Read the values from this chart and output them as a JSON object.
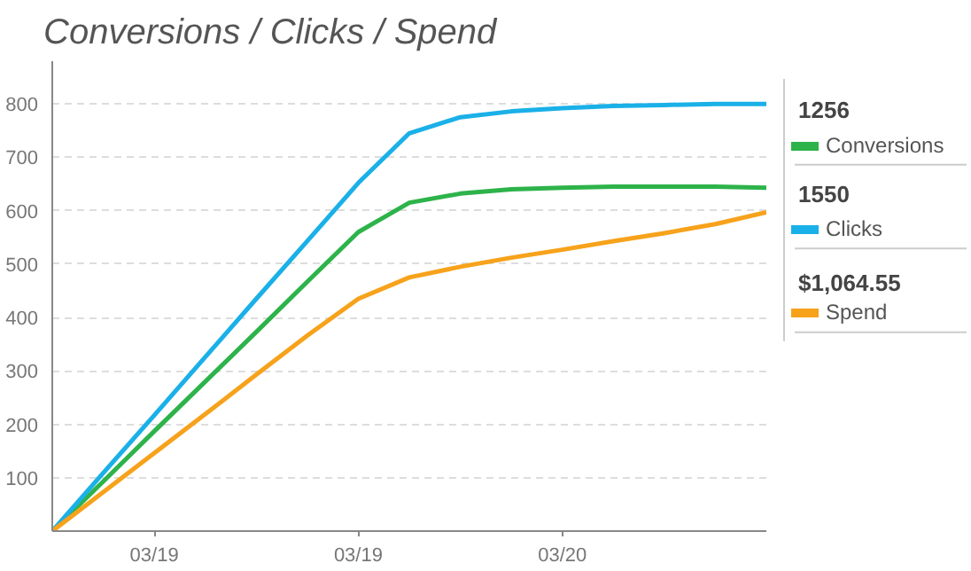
{
  "chart_data": {
    "type": "line",
    "title": "Conversions / Clicks / Spend",
    "categories": [
      null,
      null,
      "03/19",
      null,
      null,
      null,
      "03/19",
      null,
      null,
      null,
      "03/20",
      null,
      null,
      null,
      null
    ],
    "ylim": [
      0,
      880
    ],
    "yticks": [
      {
        "value": 0,
        "label": null
      },
      100,
      200,
      300,
      400,
      500,
      600,
      700,
      800
    ],
    "grid": "y",
    "legend": "right",
    "line_style": "solid",
    "annotations": [
      "1256",
      "1550",
      "$1,064.55"
    ],
    "series": [
      {
        "name": "Conversions",
        "color": "#2db34a",
        "values": [
          0,
          93,
          187,
          280,
          373,
          467,
          560,
          615,
          632,
          640,
          643,
          645,
          645,
          645,
          643
        ]
      },
      {
        "name": "Clicks",
        "color": "#1ab0e8",
        "values": [
          0,
          109,
          217,
          326,
          435,
          543,
          652,
          745,
          775,
          786,
          792,
          796,
          798,
          800,
          800
        ]
      },
      {
        "name": "Spend",
        "color": "#f7a21b",
        "values": [
          0,
          73,
          146,
          219,
          293,
          366,
          435,
          475,
          495,
          512,
          527,
          543,
          558,
          575,
          597
        ]
      }
    ]
  }
}
